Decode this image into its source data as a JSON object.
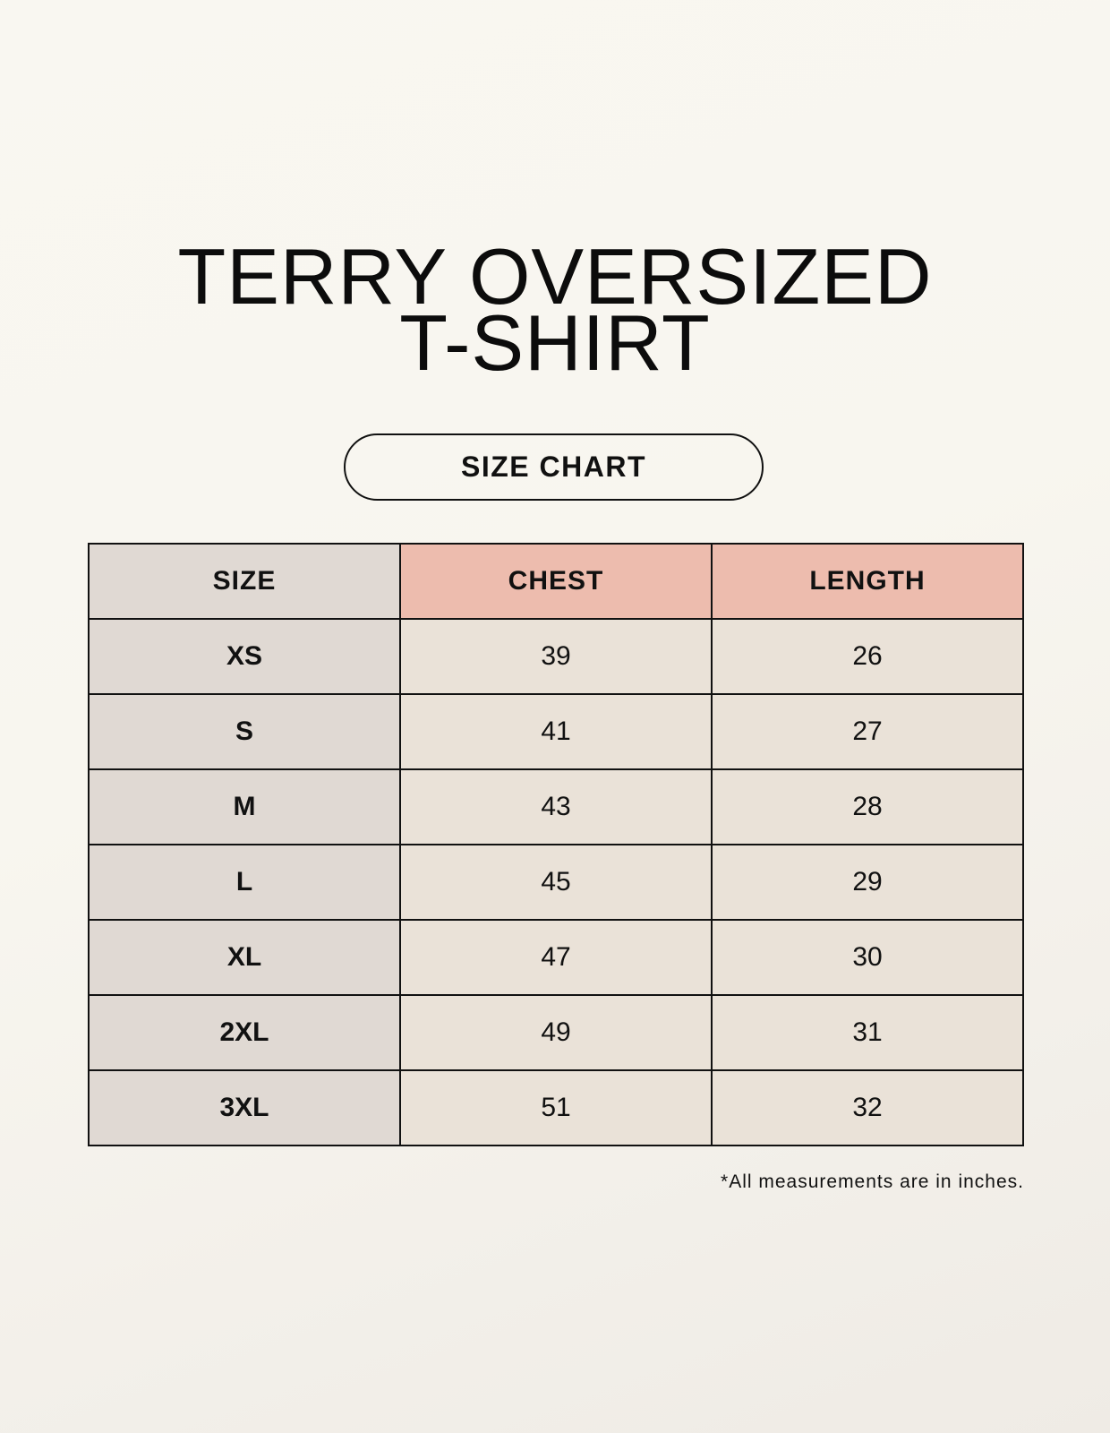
{
  "title_line1": "TERRY OVERSIZED",
  "title_line2": "T-SHIRT",
  "subtitle": "SIZE CHART",
  "table": {
    "headers": [
      "SIZE",
      "CHEST",
      "LENGTH"
    ],
    "rows": [
      [
        "XS",
        "39",
        "26"
      ],
      [
        "S",
        "41",
        "27"
      ],
      [
        "M",
        "43",
        "28"
      ],
      [
        "L",
        "45",
        "29"
      ],
      [
        "XL",
        "47",
        "30"
      ],
      [
        "2XL",
        "49",
        "31"
      ],
      [
        "3XL",
        "51",
        "32"
      ]
    ]
  },
  "footnote": "*All measurements are in inches.",
  "colors": {
    "size_column": "#e0d9d3",
    "header_accent": "#edbcae",
    "value_cells": "#eae2d8"
  }
}
